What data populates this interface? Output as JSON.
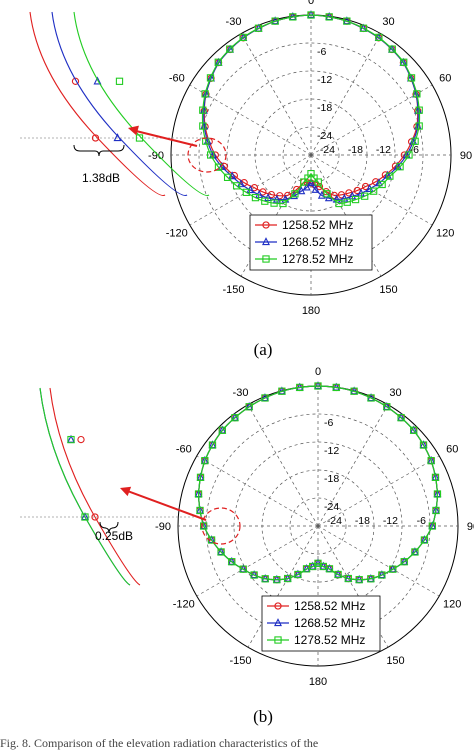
{
  "chart_data": [
    {
      "type": "polar-line",
      "panel_label": "(a)",
      "angular_ticks": [
        "0",
        "30",
        "60",
        "90",
        "120",
        "150",
        "180",
        "-150",
        "-120",
        "-90",
        "-60",
        "-30"
      ],
      "radial_ticks": [
        "-6",
        "-12",
        "-18",
        "-24"
      ],
      "radial_range_db": [
        -30,
        0
      ],
      "grid": true,
      "legend_position": "bottom-right inside plot",
      "annotation": "1.38dB",
      "angles_deg": [
        -180,
        -165,
        -150,
        -135,
        -120,
        -105,
        -90,
        -75,
        -60,
        -45,
        -30,
        -15,
        0,
        15,
        30,
        45,
        60,
        75,
        90,
        105,
        120,
        135,
        150,
        165,
        180
      ],
      "series": [
        {
          "name": "1258.52 MHz",
          "color": "#e02020",
          "marker": "circle",
          "values": [
            -24,
            -24,
            -20,
            -18,
            -16,
            -13,
            -9.5,
            -6.5,
            -4,
            -2,
            -1,
            -0.3,
            0,
            -0.3,
            -1,
            -2,
            -4,
            -6.5,
            -10,
            -13.5,
            -16.5,
            -18.5,
            -20,
            -23,
            -24
          ]
        },
        {
          "name": "1268.52 MHz",
          "color": "#1f2fc4",
          "marker": "triangle",
          "values": [
            -24,
            -22,
            -19,
            -17,
            -15,
            -12.5,
            -9,
            -6.3,
            -4,
            -2,
            -1,
            -0.3,
            0,
            -0.3,
            -1,
            -2,
            -4,
            -6.3,
            -9.5,
            -13,
            -15.5,
            -17.5,
            -19,
            -21,
            -24
          ]
        },
        {
          "name": "1278.52 MHz",
          "color": "#22cc22",
          "marker": "square",
          "values": [
            -26,
            -24,
            -18,
            -16,
            -14,
            -11.5,
            -8.5,
            -6,
            -3.8,
            -1.9,
            -0.9,
            -0.3,
            0,
            -0.3,
            -0.9,
            -1.9,
            -3.8,
            -6,
            -9,
            -12.5,
            -14.5,
            -16.5,
            -18,
            -24,
            -26
          ]
        }
      ]
    },
    {
      "type": "polar-line",
      "panel_label": "(b)",
      "angular_ticks": [
        "0",
        "30",
        "60",
        "90",
        "120",
        "150",
        "180",
        "-150",
        "-120",
        "-90",
        "-60",
        "-30"
      ],
      "radial_ticks": [
        "-6",
        "-12",
        "-18",
        "-24"
      ],
      "radial_range_db": [
        -30,
        0
      ],
      "grid": true,
      "legend_position": "bottom-center inside plot",
      "annotation": "0.25dB",
      "angles_deg": [
        -180,
        -165,
        -150,
        -135,
        -120,
        -105,
        -90,
        -75,
        -60,
        -45,
        -30,
        -15,
        0,
        15,
        30,
        45,
        60,
        75,
        90,
        105,
        120,
        135,
        150,
        165,
        180
      ],
      "series": [
        {
          "name": "1258.52 MHz",
          "color": "#e02020",
          "marker": "circle",
          "values": [
            -22,
            -20.5,
            -17,
            -14,
            -11.5,
            -8.5,
            -5.5,
            -3.5,
            -2,
            -1,
            -0.5,
            -0.1,
            0,
            -0.1,
            -0.5,
            -1,
            -2,
            -3.5,
            -5.5,
            -8.5,
            -11.5,
            -14,
            -17,
            -20.5,
            -22
          ]
        },
        {
          "name": "1268.52 MHz",
          "color": "#1f2fc4",
          "marker": "triangle",
          "values": [
            -22,
            -20.5,
            -17,
            -14,
            -11.5,
            -8.5,
            -5.5,
            -3.5,
            -2,
            -1,
            -0.5,
            -0.1,
            0,
            -0.1,
            -0.5,
            -1,
            -2,
            -3.5,
            -5.5,
            -8.5,
            -11.5,
            -14,
            -17,
            -20.5,
            -22
          ]
        },
        {
          "name": "1278.52 MHz",
          "color": "#22cc22",
          "marker": "square",
          "values": [
            -22,
            -20.5,
            -17,
            -14,
            -11.5,
            -8.5,
            -5.5,
            -3.5,
            -2,
            -1,
            -0.5,
            -0.1,
            0,
            -0.1,
            -0.5,
            -1,
            -2,
            -3.5,
            -5.5,
            -8.5,
            -11.5,
            -14,
            -17,
            -20.5,
            -22
          ]
        }
      ]
    }
  ],
  "caption": "Fig. 8.  Comparison of the elevation radiation characteristics of the"
}
